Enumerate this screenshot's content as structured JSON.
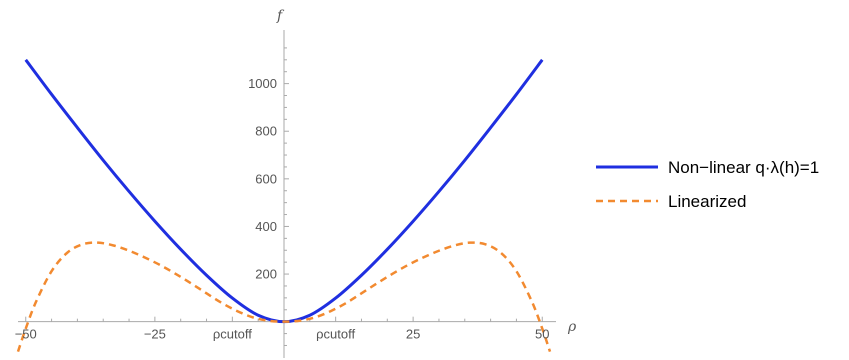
{
  "chart_data": {
    "type": "line",
    "xlabel": "ρ",
    "ylabel": "f",
    "xlim": [
      -51.5,
      51.5
    ],
    "ylim": [
      -140,
      1200
    ],
    "x_ticks": [
      {
        "value": -50,
        "label": "−50"
      },
      {
        "value": -25,
        "label": "−25"
      },
      {
        "value": -10,
        "label": "ρcutoff"
      },
      {
        "value": 10,
        "label": "ρcutoff"
      },
      {
        "value": 25,
        "label": "25"
      },
      {
        "value": 50,
        "label": "50"
      }
    ],
    "y_ticks": [
      {
        "value": 200,
        "label": "200"
      },
      {
        "value": 400,
        "label": "400"
      },
      {
        "value": 600,
        "label": "600"
      },
      {
        "value": 800,
        "label": "800"
      },
      {
        "value": 1000,
        "label": "1000"
      }
    ],
    "legend_position": "right",
    "series": [
      {
        "name": "Non−linear q·λ(h)=1",
        "color": "#1f2fe0",
        "style": "solid",
        "x": [
          -50,
          -45,
          -40,
          -35,
          -30,
          -25,
          -20,
          -15,
          -10,
          -5,
          0,
          5,
          10,
          15,
          20,
          25,
          30,
          35,
          40,
          45,
          50
        ],
        "y": [
          1100,
          955,
          815,
          678,
          547,
          422,
          304,
          195,
          99,
          27,
          0,
          27,
          99,
          195,
          304,
          422,
          547,
          678,
          815,
          955,
          1100
        ]
      },
      {
        "name": "Linearized",
        "color": "#f28a30",
        "style": "dashed",
        "x": [
          -51.5,
          -50,
          -48,
          -45,
          -42,
          -39,
          -36,
          -33,
          -30,
          -27,
          -24,
          -21,
          -18,
          -15,
          -12,
          -9,
          -6,
          -3,
          0,
          3,
          6,
          9,
          12,
          15,
          18,
          21,
          24,
          27,
          30,
          33,
          36,
          39,
          42,
          45,
          48,
          50,
          51.5
        ],
        "y": [
          -126,
          -29,
          84,
          212,
          289,
          325,
          332,
          320,
          298,
          270,
          238,
          201,
          161,
          119,
          78,
          44,
          18,
          4,
          0,
          4,
          18,
          44,
          78,
          119,
          161,
          201,
          238,
          270,
          298,
          320,
          332,
          325,
          289,
          212,
          84,
          -29,
          -126
        ]
      }
    ]
  }
}
